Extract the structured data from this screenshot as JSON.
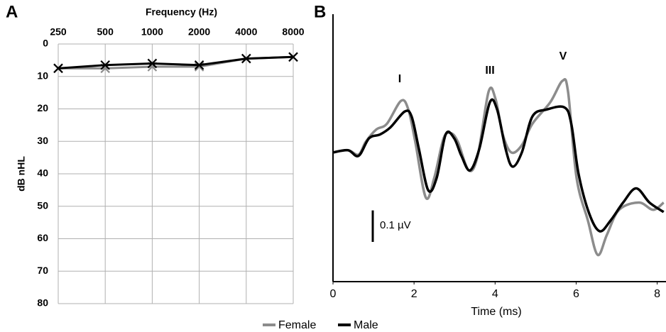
{
  "chart_data": [
    {
      "type": "line",
      "panel_label": "A",
      "x_label": "Frequency (Hz)",
      "y_label": "dB nHL",
      "categories": [
        250,
        500,
        1000,
        2000,
        4000,
        8000
      ],
      "x_axis_position": "top",
      "y_inverted": true,
      "ylim": [
        0,
        80
      ],
      "yticks": [
        0,
        10,
        20,
        30,
        40,
        50,
        60,
        70,
        80
      ],
      "grid": true,
      "series": [
        {
          "color": "#8c8c8c",
          "marker": "x",
          "values": [
            7.5,
            7.5,
            7,
            7,
            4.5,
            4
          ]
        },
        {
          "color": "#000000",
          "marker": "x",
          "values": [
            7.5,
            6.5,
            6,
            6.5,
            4.5,
            4
          ]
        }
      ]
    },
    {
      "type": "line",
      "panel_label": "B",
      "x_label": "Time (ms)",
      "xlim": [
        0,
        8.2
      ],
      "xticks": [
        0,
        2,
        4,
        6,
        8
      ],
      "ylim": [
        -0.41,
        0.36
      ],
      "annotations": [
        "I",
        "III",
        "V"
      ],
      "scale_bar": {
        "value": 0.1,
        "label": "0.1 µV"
      },
      "legend": "bottom",
      "series": [
        {
          "name": "Female",
          "color": "#8c8c8c",
          "x": [
            0,
            0.37,
            0.63,
            0.81,
            1.07,
            1.33,
            1.68,
            1.86,
            2.03,
            2.29,
            2.5,
            2.73,
            2.91,
            3.08,
            3.35,
            3.57,
            3.84,
            4.01,
            4.19,
            4.4,
            4.66,
            4.92,
            5.36,
            5.66,
            5.8,
            6.01,
            6.29,
            6.53,
            6.76,
            7.06,
            7.55,
            7.9,
            8.16
          ],
          "values": [
            0,
            0.007,
            -0.007,
            0.034,
            0.073,
            0.091,
            0.164,
            0.136,
            0.034,
            -0.143,
            -0.08,
            0.045,
            0.061,
            0.034,
            -0.057,
            -0.011,
            0.193,
            0.17,
            0.057,
            0,
            0.023,
            0.091,
            0.159,
            0.227,
            0.193,
            -0.08,
            -0.216,
            -0.325,
            -0.261,
            -0.182,
            -0.159,
            -0.182,
            -0.159
          ]
        },
        {
          "name": "Male",
          "color": "#000000",
          "x": [
            0,
            0.37,
            0.63,
            0.89,
            1.16,
            1.42,
            1.77,
            1.94,
            2.12,
            2.35,
            2.56,
            2.78,
            2.99,
            3.17,
            3.38,
            3.61,
            3.87,
            4.05,
            4.26,
            4.43,
            4.66,
            4.92,
            5.27,
            5.71,
            5.88,
            6.06,
            6.32,
            6.58,
            6.85,
            7.16,
            7.48,
            7.81,
            8.16
          ],
          "values": [
            0,
            0.007,
            -0.011,
            0.045,
            0.057,
            0.08,
            0.13,
            0.114,
            0.011,
            -0.12,
            -0.08,
            0.057,
            0.045,
            -0.011,
            -0.057,
            0.011,
            0.159,
            0.136,
            0.011,
            -0.045,
            0,
            0.114,
            0.136,
            0.143,
            0.091,
            -0.068,
            -0.193,
            -0.25,
            -0.216,
            -0.159,
            -0.114,
            -0.159,
            -0.189
          ]
        }
      ]
    }
  ]
}
